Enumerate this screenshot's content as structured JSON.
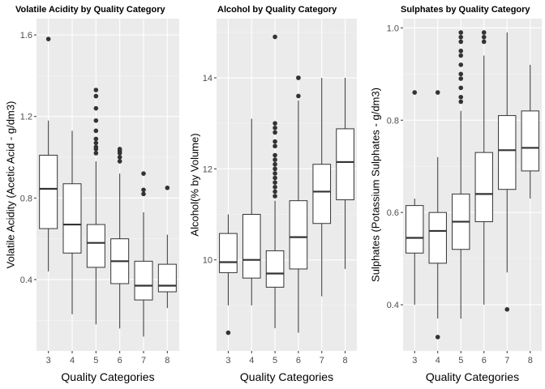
{
  "chart_data": [
    {
      "type": "boxplot",
      "title": "Volatile Acidity by Quality Category",
      "xlabel": "Quality Categories",
      "ylabel": "Volatile Acidity (Acetic Acid - g/dm3)",
      "categories": [
        "3",
        "4",
        "5",
        "6",
        "7",
        "8"
      ],
      "ylim": [
        0.05,
        1.68
      ],
      "yticks": [
        0.4,
        0.8,
        1.2,
        1.6
      ],
      "yticklabels": [
        "0.4",
        "0.8",
        "1.2",
        "1.6"
      ],
      "grid": true,
      "boxes": [
        {
          "min": 0.44,
          "q1": 0.65,
          "median": 0.845,
          "q3": 1.01,
          "max": 1.18,
          "outliers": [
            1.58
          ]
        },
        {
          "min": 0.23,
          "q1": 0.53,
          "median": 0.67,
          "q3": 0.87,
          "max": 1.13,
          "outliers": []
        },
        {
          "min": 0.18,
          "q1": 0.46,
          "median": 0.58,
          "q3": 0.67,
          "max": 0.98,
          "outliers": [
            1.33,
            1.3,
            1.24,
            1.18,
            1.13,
            1.09,
            1.07,
            1.05,
            1.04,
            1.02
          ]
        },
        {
          "min": 0.16,
          "q1": 0.38,
          "median": 0.49,
          "q3": 0.6,
          "max": 0.92,
          "outliers": [
            1.04,
            1.03,
            1.02,
            1.0,
            0.98
          ]
        },
        {
          "min": 0.12,
          "q1": 0.3,
          "median": 0.37,
          "q3": 0.49,
          "max": 0.73,
          "outliers": [
            0.92,
            0.84,
            0.82
          ]
        },
        {
          "min": 0.26,
          "q1": 0.34,
          "median": 0.37,
          "q3": 0.475,
          "max": 0.62,
          "outliers": [
            0.85
          ]
        }
      ]
    },
    {
      "type": "boxplot",
      "title": "Alcohol by Quality Category",
      "xlabel": "Quality Categories",
      "ylabel": "Alcohol(% by Volume)",
      "categories": [
        "3",
        "4",
        "5",
        "6",
        "7",
        "8"
      ],
      "ylim": [
        8.0,
        15.3
      ],
      "yticks": [
        10,
        12,
        14
      ],
      "yticklabels": [
        "10",
        "12",
        "14"
      ],
      "grid": true,
      "boxes": [
        {
          "min": 9.0,
          "q1": 9.72,
          "median": 9.95,
          "q3": 10.58,
          "max": 11.0,
          "outliers": [
            8.4
          ]
        },
        {
          "min": 9.0,
          "q1": 9.6,
          "median": 10.0,
          "q3": 11.0,
          "max": 13.1,
          "outliers": []
        },
        {
          "min": 8.5,
          "q1": 9.4,
          "median": 9.7,
          "q3": 10.2,
          "max": 11.3,
          "outliers": [
            14.9,
            13.0,
            12.9,
            12.8,
            12.6,
            12.5,
            12.3,
            12.2,
            12.1,
            12.0,
            11.9,
            11.8,
            11.7,
            11.6,
            11.5,
            11.4
          ]
        },
        {
          "min": 8.4,
          "q1": 9.8,
          "median": 10.5,
          "q3": 11.3,
          "max": 13.5,
          "outliers": [
            14.0,
            14.0,
            13.6
          ]
        },
        {
          "min": 9.2,
          "q1": 10.8,
          "median": 11.5,
          "q3": 12.1,
          "max": 14.0,
          "outliers": []
        },
        {
          "min": 9.8,
          "q1": 11.32,
          "median": 12.15,
          "q3": 12.88,
          "max": 14.0,
          "outliers": []
        }
      ]
    },
    {
      "type": "boxplot",
      "title": "Sulphates by Quality Category",
      "xlabel": "Quality Categories",
      "ylabel": "Sulphates (Potassium Sulphates - g/dm3)",
      "categories": [
        "3",
        "4",
        "5",
        "6",
        "7",
        "8"
      ],
      "ylim": [
        0.3,
        1.02
      ],
      "yticks": [
        0.4,
        0.6,
        0.8,
        1.0
      ],
      "yticklabels": [
        "0.4",
        "0.6",
        "0.8",
        "1.0"
      ],
      "grid": true,
      "boxes": [
        {
          "min": 0.4,
          "q1": 0.512,
          "median": 0.545,
          "q3": 0.615,
          "max": 0.63,
          "outliers": [
            0.86
          ]
        },
        {
          "min": 0.37,
          "q1": 0.49,
          "median": 0.56,
          "q3": 0.6,
          "max": 0.72,
          "outliers": [
            0.86,
            0.33
          ]
        },
        {
          "min": 0.37,
          "q1": 0.52,
          "median": 0.58,
          "q3": 0.64,
          "max": 0.82,
          "outliers": [
            0.99,
            0.98,
            0.97,
            0.95,
            0.94,
            0.92,
            0.9,
            0.89,
            0.87,
            0.85,
            0.84
          ]
        },
        {
          "min": 0.4,
          "q1": 0.58,
          "median": 0.64,
          "q3": 0.73,
          "max": 0.94,
          "outliers": [
            0.99,
            0.98,
            0.97
          ]
        },
        {
          "min": 0.47,
          "q1": 0.65,
          "median": 0.735,
          "q3": 0.81,
          "max": 0.99,
          "outliers": [
            0.39
          ]
        },
        {
          "min": 0.63,
          "q1": 0.69,
          "median": 0.74,
          "q3": 0.82,
          "max": 0.92,
          "outliers": []
        }
      ]
    }
  ]
}
